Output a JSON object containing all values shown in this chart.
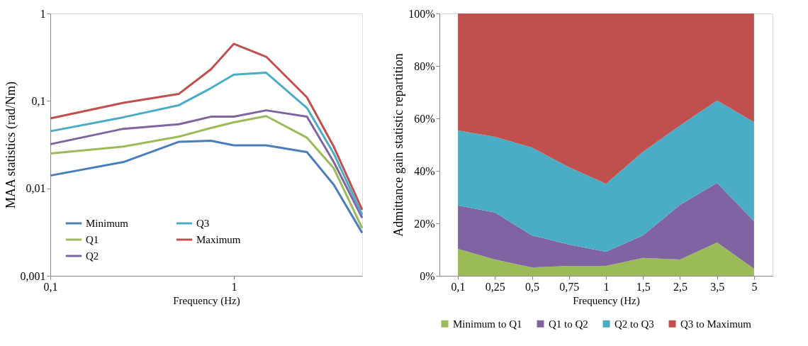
{
  "chart_data": [
    {
      "type": "line",
      "xlabel": "Frequency (Hz)",
      "ylabel": "MAA statistics (rad/Nm)",
      "log": "xy",
      "grid": false,
      "legend": "bottom left",
      "marker": "none",
      "line_style": "solid",
      "x": [
        0.1,
        0.25,
        0.5,
        0.75,
        1,
        1.5,
        2.5,
        3.5,
        5
      ],
      "xlim": [
        0.1,
        5
      ],
      "xticks": [
        {
          "value": 0.1,
          "label": "0,1"
        },
        1
      ],
      "ylim": [
        0.001,
        1
      ],
      "yticks": [
        {
          "value": 0.001,
          "label": "0,001"
        },
        {
          "value": 0.01,
          "label": "0,01"
        },
        {
          "value": 0.1,
          "label": "0,1"
        },
        1
      ],
      "series": [
        {
          "name": "Minimum",
          "color": "#4a7ebb",
          "values": [
            0.014,
            0.02,
            0.034,
            0.035,
            0.031,
            0.031,
            0.026,
            0.011,
            0.0031
          ]
        },
        {
          "name": "Q1",
          "color": "#9bbb59",
          "values": [
            0.025,
            0.03,
            0.039,
            0.049,
            0.057,
            0.067,
            0.038,
            0.017,
            0.0035
          ]
        },
        {
          "name": "Q2",
          "color": "#8064a2",
          "values": [
            0.032,
            0.048,
            0.054,
            0.066,
            0.066,
            0.078,
            0.066,
            0.02,
            0.0046
          ]
        },
        {
          "name": "Q3",
          "color": "#4bacc6",
          "values": [
            0.045,
            0.065,
            0.089,
            0.14,
            0.2,
            0.21,
            0.083,
            0.025,
            0.005
          ]
        },
        {
          "name": "Maximum",
          "color": "#c0504d",
          "values": [
            0.063,
            0.095,
            0.12,
            0.23,
            0.45,
            0.32,
            0.11,
            0.03,
            0.0057
          ]
        }
      ]
    },
    {
      "type": "area",
      "stacked": true,
      "xlabel": "Frequency (Hz)",
      "ylabel": "Admittance gain statistic repartition",
      "grid": false,
      "legend": "bottom",
      "categories": [
        "0,1",
        "0,25",
        "0,5",
        "0,75",
        "1",
        "1,5",
        "2,5",
        "3,5",
        "5"
      ],
      "ylim": [
        0,
        100
      ],
      "yticks": [
        {
          "value": 0,
          "label": "0%"
        },
        {
          "value": 20,
          "label": "20%"
        },
        {
          "value": 40,
          "label": "40%"
        },
        {
          "value": 60,
          "label": "60%"
        },
        {
          "value": 80,
          "label": "80%"
        },
        {
          "value": 100,
          "label": "100%"
        }
      ],
      "series": [
        {
          "name": "Minimum to Q1",
          "color": "#9bbb59",
          "values": [
            10.3,
            6.2,
            3.2,
            3.8,
            3.8,
            6.8,
            6.2,
            12.7,
            2.7
          ]
        },
        {
          "name": "Q1 to Q2",
          "color": "#8064a2",
          "values": [
            16.5,
            17.9,
            12.2,
            8.1,
            5.4,
            8.6,
            20.8,
            22.7,
            18.1
          ]
        },
        {
          "name": "Q2 to Q3",
          "color": "#4bacc6",
          "values": [
            28.6,
            28.9,
            33.5,
            29.5,
            25.9,
            31.9,
            30.3,
            31.4,
            37.8
          ]
        },
        {
          "name": "Q3 to Maximum",
          "color": "#c0504d",
          "values": [
            44.6,
            47.0,
            51.1,
            58.6,
            64.9,
            52.7,
            42.7,
            33.2,
            41.4
          ]
        }
      ]
    }
  ]
}
